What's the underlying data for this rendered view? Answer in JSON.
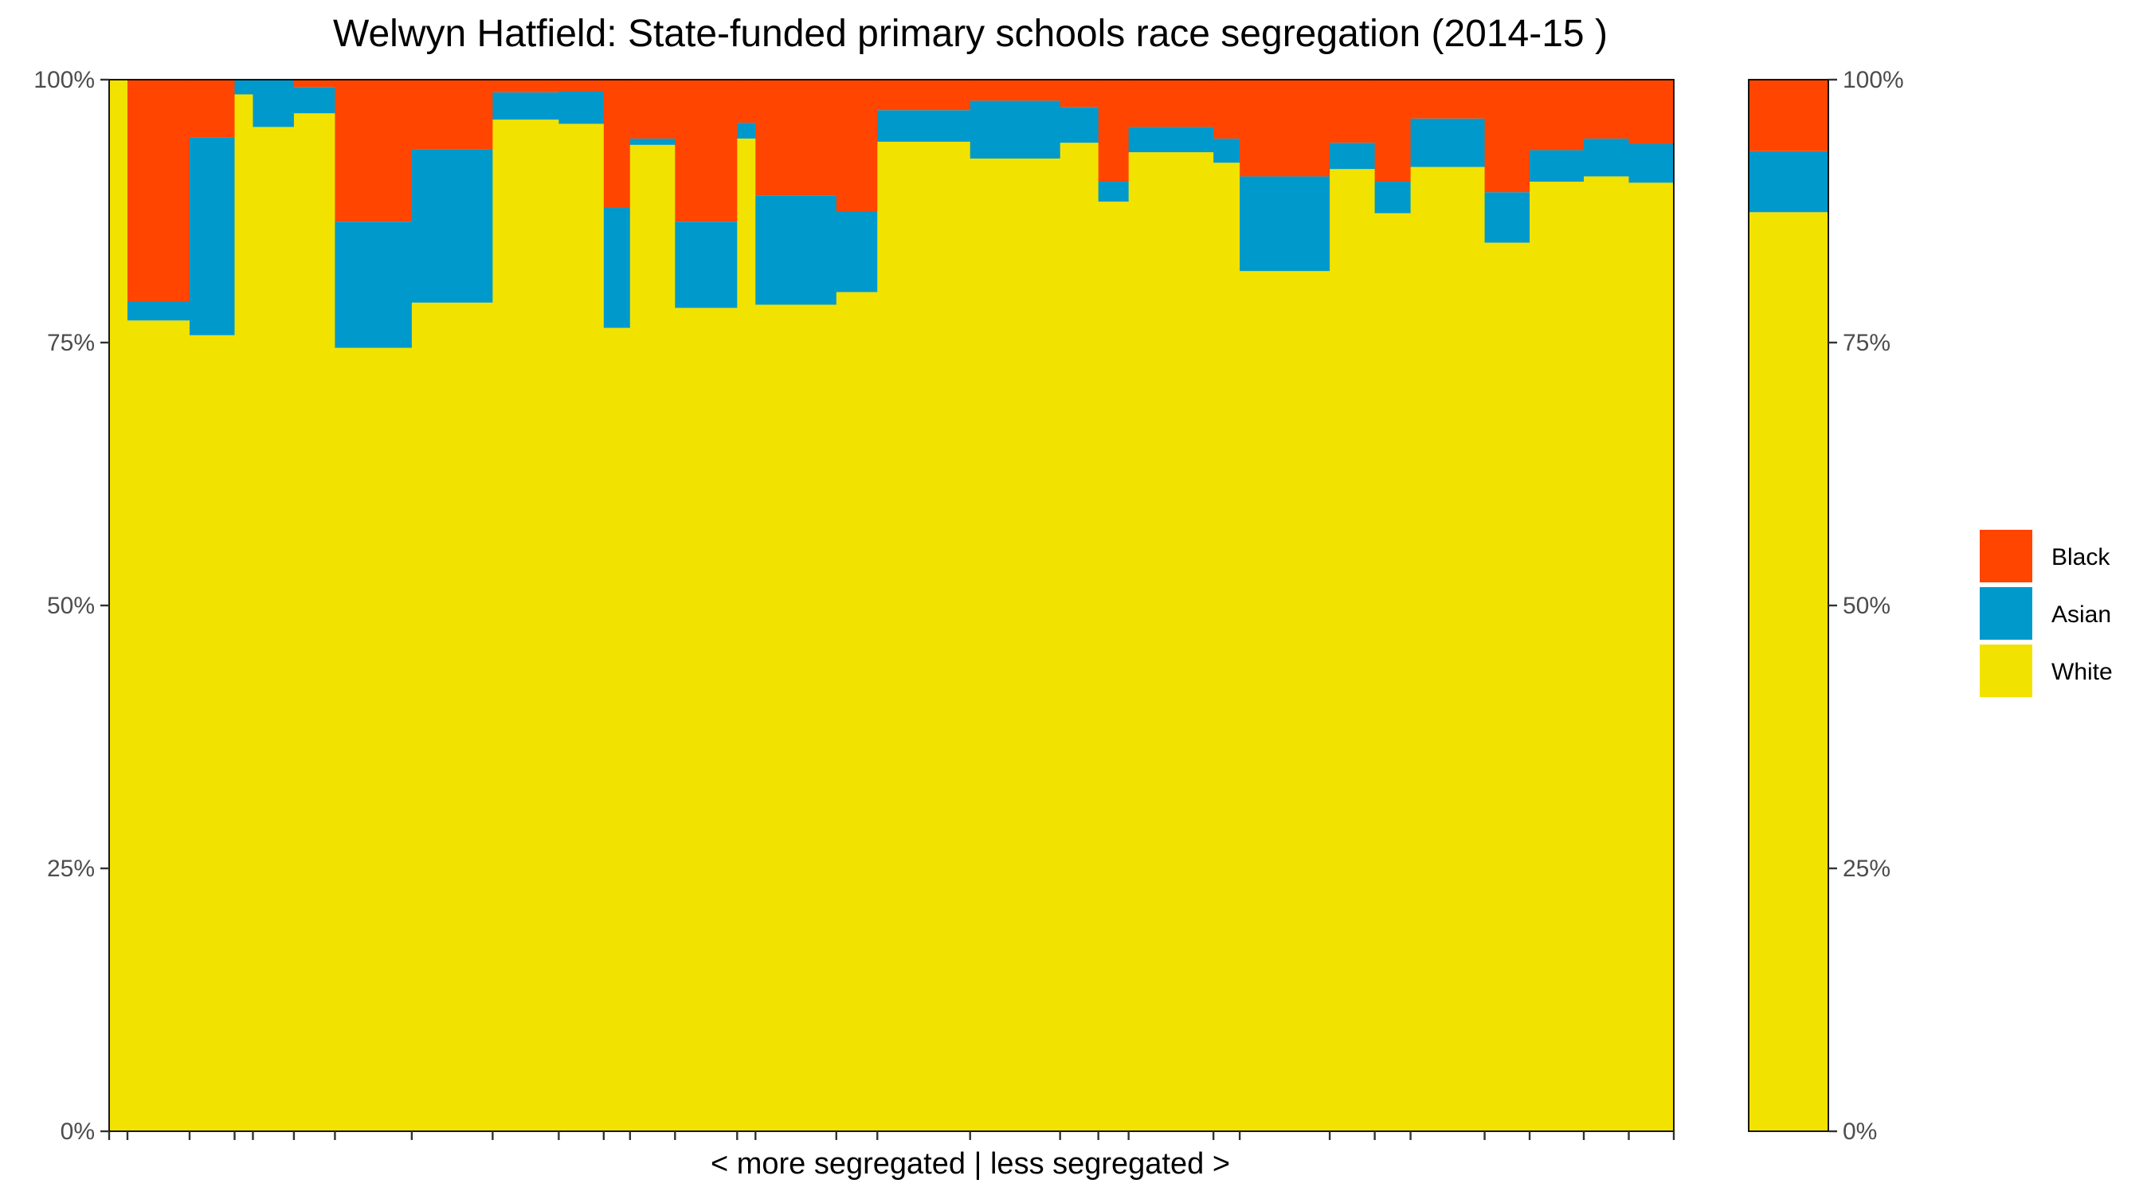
{
  "chart_data": {
    "type": "bar",
    "stacked": true,
    "variable_width": true,
    "title": "Welwyn Hatfield: State-funded primary schools race segregation (2014-15 )",
    "xlabel": "< more segregated | less segregated >",
    "ylabel": "",
    "ylim": [
      0,
      100
    ],
    "y_ticks": [
      "0%",
      "25%",
      "50%",
      "75%",
      "100%"
    ],
    "y_tick_values": [
      0,
      25,
      50,
      75,
      100
    ],
    "legend": [
      {
        "name": "Black",
        "color": "#FF4500"
      },
      {
        "name": "Asian",
        "color": "#0099CC"
      },
      {
        "name": "White",
        "color": "#F2E200"
      }
    ],
    "legend_position": "right",
    "grid": false,
    "secondary_axis": true,
    "series_order": [
      "White",
      "Asian",
      "Black"
    ],
    "schools": [
      {
        "pupils": 4.6,
        "white": 100,
        "asian": 0,
        "black": 0
      },
      {
        "pupils": 15.6,
        "white": 77.1,
        "asian": 1.8,
        "black": 21.1
      },
      {
        "pupils": 11.3,
        "white": 75.7,
        "asian": 18.8,
        "black": 5.5
      },
      {
        "pupils": 4.6,
        "white": 98.6,
        "asian": 1.4,
        "black": 0
      },
      {
        "pupils": 10.3,
        "white": 95.5,
        "asian": 4.5,
        "black": 0
      },
      {
        "pupils": 10.3,
        "white": 96.8,
        "asian": 2.5,
        "black": 0.7
      },
      {
        "pupils": 19.3,
        "white": 74.5,
        "asian": 12.0,
        "black": 13.5
      },
      {
        "pupils": 20.3,
        "white": 78.8,
        "asian": 14.6,
        "black": 6.6
      },
      {
        "pupils": 16.6,
        "white": 96.2,
        "asian": 2.6,
        "black": 1.2
      },
      {
        "pupils": 11.3,
        "white": 95.8,
        "asian": 3.1,
        "black": 1.1
      },
      {
        "pupils": 6.6,
        "white": 76.4,
        "asian": 11.4,
        "black": 12.2
      },
      {
        "pupils": 11.3,
        "white": 93.8,
        "asian": 0.6,
        "black": 5.6
      },
      {
        "pupils": 15.6,
        "white": 78.3,
        "asian": 8.2,
        "black": 13.5
      },
      {
        "pupils": 4.6,
        "white": 94.4,
        "asian": 1.5,
        "black": 4.1
      },
      {
        "pupils": 20.3,
        "white": 78.6,
        "asian": 10.4,
        "black": 11.0
      },
      {
        "pupils": 10.3,
        "white": 79.8,
        "asian": 7.7,
        "black": 12.5
      },
      {
        "pupils": 23.3,
        "white": 94.1,
        "asian": 3.0,
        "black": 2.9
      },
      {
        "pupils": 22.6,
        "white": 92.5,
        "asian": 5.5,
        "black": 2.0
      },
      {
        "pupils": 9.6,
        "white": 94.0,
        "asian": 3.4,
        "black": 2.6
      },
      {
        "pupils": 7.6,
        "white": 88.4,
        "asian": 1.9,
        "black": 9.7
      },
      {
        "pupils": 21.3,
        "white": 93.1,
        "asian": 2.4,
        "black": 4.5
      },
      {
        "pupils": 6.6,
        "white": 92.1,
        "asian": 2.3,
        "black": 5.6
      },
      {
        "pupils": 22.6,
        "white": 81.8,
        "asian": 9.0,
        "black": 9.2
      },
      {
        "pupils": 11.3,
        "white": 91.5,
        "asian": 2.5,
        "black": 6.0
      },
      {
        "pupils": 9.0,
        "white": 87.3,
        "asian": 3.0,
        "black": 9.7
      },
      {
        "pupils": 18.6,
        "white": 91.7,
        "asian": 4.6,
        "black": 3.7
      },
      {
        "pupils": 11.3,
        "white": 84.5,
        "asian": 4.8,
        "black": 10.7
      },
      {
        "pupils": 13.6,
        "white": 90.3,
        "asian": 3.0,
        "black": 6.7
      },
      {
        "pupils": 11.3,
        "white": 90.8,
        "asian": 3.6,
        "black": 5.6
      },
      {
        "pupils": 11.3,
        "white": 90.2,
        "asian": 3.7,
        "black": 6.1
      }
    ],
    "overall": {
      "white": 87.4,
      "asian": 5.8,
      "black": 6.8
    }
  }
}
